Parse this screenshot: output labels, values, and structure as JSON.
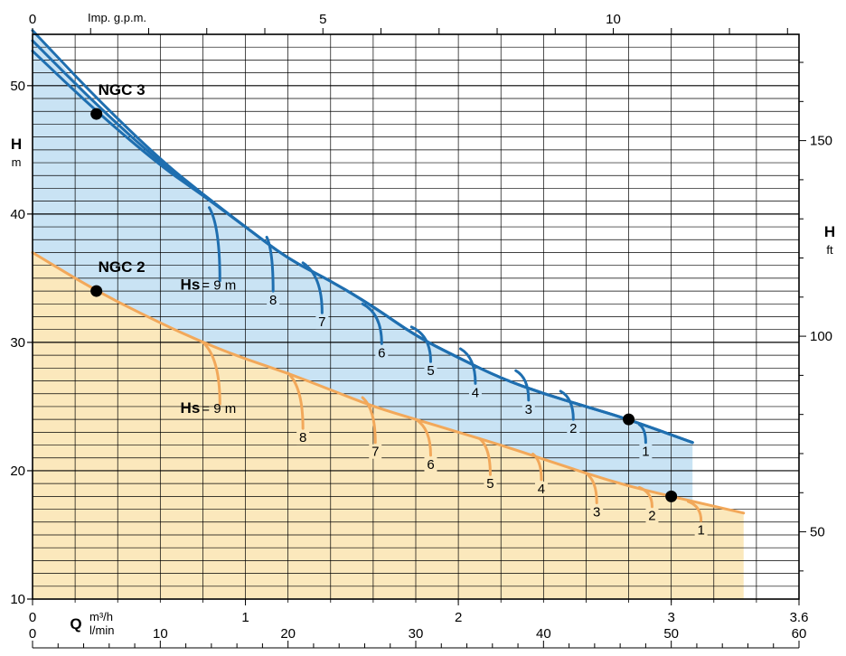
{
  "chart_data": {
    "type": "line",
    "axes": {
      "left": {
        "label": "H",
        "unit": "m",
        "ticks": [
          10,
          20,
          30,
          40,
          50
        ],
        "range": [
          10,
          54
        ]
      },
      "right": {
        "label": "H",
        "unit": "ft",
        "ticks": [
          50,
          100,
          150
        ]
      },
      "bottom_m3h": {
        "label": "Q",
        "unit": "m³/h",
        "ticks": [
          "0",
          "1",
          "2",
          "3",
          "3.6"
        ],
        "range": [
          0,
          3.6
        ]
      },
      "bottom_lmin": {
        "unit": "l/min",
        "ticks": [
          "0",
          "10",
          "20",
          "30",
          "40",
          "50",
          "60"
        ]
      },
      "top_gpm": {
        "label": "Imp. g.p.m.",
        "ticks": [
          "0",
          "5",
          "10"
        ]
      }
    },
    "grid": true,
    "series": [
      {
        "name": "NGC 3",
        "color": "#1f6fb0",
        "fill": "#c9e3f4",
        "x": [
          0,
          0.3,
          0.6,
          0.8,
          1.0,
          1.2,
          1.4,
          1.6,
          1.8,
          2.0,
          2.2,
          2.4,
          2.6,
          2.8,
          3.1
        ],
        "y": [
          53.5,
          48.5,
          44.0,
          41.5,
          39.0,
          36.5,
          34.8,
          32.8,
          30.5,
          28.8,
          27.2,
          26.0,
          25.0,
          24.0,
          22.2
        ],
        "offsets": [
          0.8,
          0,
          -0.8
        ],
        "point": {
          "x": 0.3,
          "y": 47.8
        },
        "end_point": {
          "x": 2.8,
          "y": 24.0
        },
        "suction_curves": [
          {
            "label": "Hs",
            "value_text": "= 9 m",
            "x0": 0.83,
            "y0": 40.5,
            "x1": 0.88,
            "y1": 34.8
          },
          {
            "label": "8",
            "x0": 1.1,
            "y0": 38.2,
            "x1": 1.13,
            "y1": 34.0
          },
          {
            "label": "7",
            "x0": 1.27,
            "y0": 36.2,
            "x1": 1.36,
            "y1": 32.3
          },
          {
            "label": "6",
            "x0": 1.55,
            "y0": 33.0,
            "x1": 1.64,
            "y1": 29.9
          },
          {
            "label": "5",
            "x0": 1.78,
            "y0": 31.2,
            "x1": 1.87,
            "y1": 28.5
          },
          {
            "label": "4",
            "x0": 2.01,
            "y0": 29.5,
            "x1": 2.08,
            "y1": 26.8
          },
          {
            "label": "3",
            "x0": 2.27,
            "y0": 27.8,
            "x1": 2.33,
            "y1": 25.5
          },
          {
            "label": "2",
            "x0": 2.48,
            "y0": 26.2,
            "x1": 2.54,
            "y1": 24.0
          },
          {
            "label": "1",
            "x0": 2.85,
            "y0": 23.6,
            "x1": 2.88,
            "y1": 22.2
          }
        ]
      },
      {
        "name": "NGC 2",
        "color": "#f2a85a",
        "fill": "#fbe8bc",
        "x": [
          0,
          0.3,
          0.6,
          0.8,
          1.0,
          1.2,
          1.4,
          1.6,
          1.8,
          2.0,
          2.2,
          2.4,
          2.6,
          2.8,
          3.0,
          3.34
        ],
        "y": [
          37.0,
          34.0,
          31.5,
          30.0,
          28.7,
          27.6,
          26.3,
          25.0,
          24.0,
          23.0,
          22.0,
          20.9,
          19.8,
          18.8,
          18.0,
          16.7
        ],
        "point": {
          "x": 0.3,
          "y": 34.0
        },
        "end_point": {
          "x": 3.0,
          "y": 18.0
        },
        "suction_curves": [
          {
            "label": "Hs",
            "value_text": "= 9 m",
            "x0": 0.8,
            "y0": 30.0,
            "x1": 0.88,
            "y1": 25.2
          },
          {
            "label": "8",
            "x0": 1.2,
            "y0": 27.6,
            "x1": 1.27,
            "y1": 23.3
          },
          {
            "label": "7",
            "x0": 1.55,
            "y0": 25.7,
            "x1": 1.61,
            "y1": 22.2
          },
          {
            "label": "6",
            "x0": 1.8,
            "y0": 24.0,
            "x1": 1.87,
            "y1": 21.2
          },
          {
            "label": "5",
            "x0": 2.1,
            "y0": 22.5,
            "x1": 2.15,
            "y1": 19.7
          },
          {
            "label": "4",
            "x0": 2.35,
            "y0": 21.3,
            "x1": 2.39,
            "y1": 19.3
          },
          {
            "label": "3",
            "x0": 2.6,
            "y0": 19.8,
            "x1": 2.65,
            "y1": 17.5
          },
          {
            "label": "2",
            "x0": 2.85,
            "y0": 18.7,
            "x1": 2.91,
            "y1": 17.2
          },
          {
            "label": "1",
            "x0": 3.08,
            "y0": 17.6,
            "x1": 3.14,
            "y1": 16.1
          }
        ]
      }
    ]
  }
}
